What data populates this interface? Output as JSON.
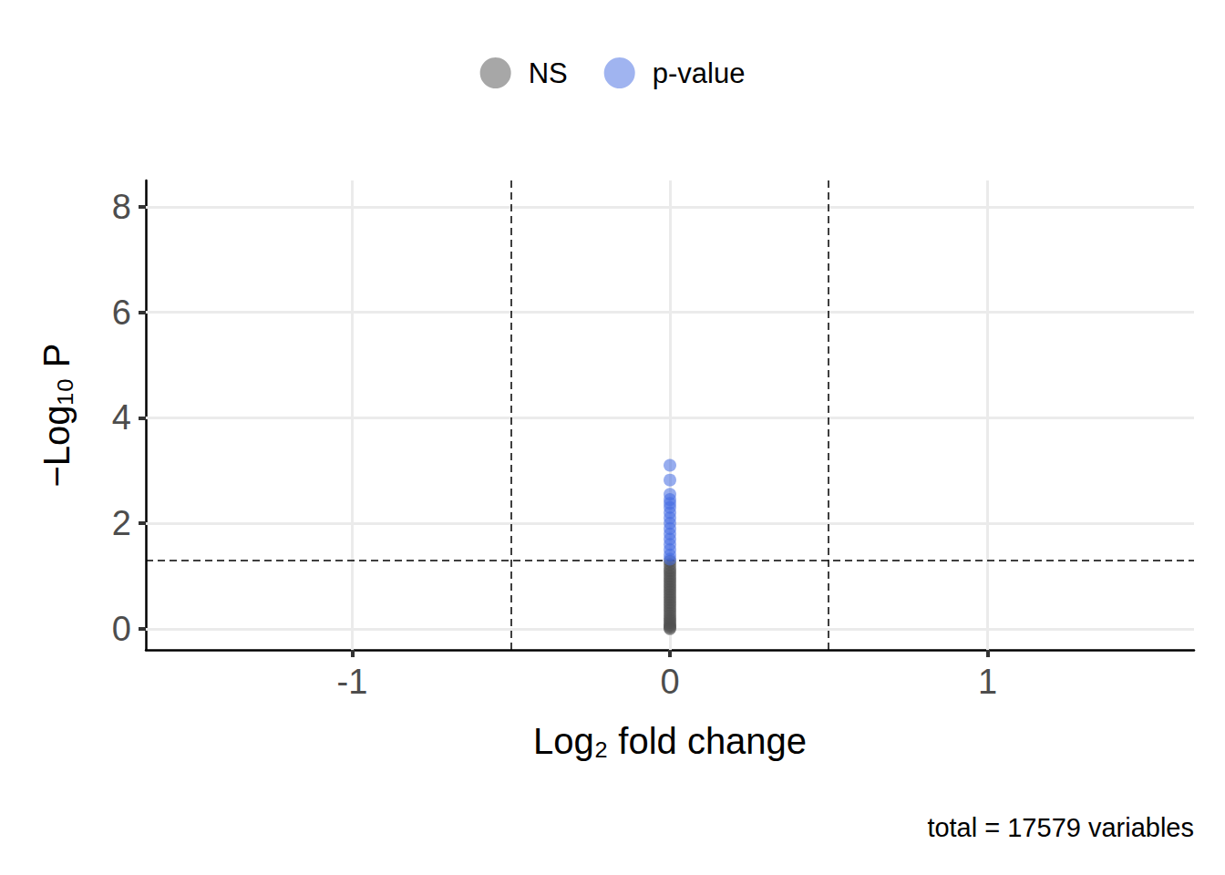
{
  "chart_data": {
    "type": "scatter",
    "x_label": "Log₂ fold change",
    "y_label": "−Log₁₀ P",
    "caption": "total = 17579 variables",
    "xlim": [
      -1.65,
      1.65
    ],
    "xticks": [
      -1,
      0,
      1
    ],
    "ylim": [
      -0.4,
      8.5
    ],
    "yticks": [
      0,
      2,
      4,
      6,
      8
    ],
    "grid": true,
    "legend": "top",
    "marker": "circle",
    "vlines": [
      -0.5,
      0.5
    ],
    "hlines": [
      1.301
    ],
    "series": [
      {
        "name": "NS",
        "color": "#505050",
        "x": [
          0,
          0,
          0,
          0,
          0,
          0,
          0,
          0,
          0,
          0,
          0,
          0,
          0,
          0,
          0,
          0,
          0,
          0,
          0,
          0,
          0,
          0,
          0,
          0,
          0,
          0,
          0,
          0
        ],
        "values": [
          0,
          0.02,
          0.05,
          0.08,
          0.12,
          0.16,
          0.2,
          0.25,
          0.3,
          0.35,
          0.4,
          0.45,
          0.5,
          0.55,
          0.6,
          0.65,
          0.7,
          0.75,
          0.8,
          0.85,
          0.9,
          0.95,
          1.0,
          1.05,
          1.1,
          1.15,
          1.22,
          1.28
        ]
      },
      {
        "name": "p-value",
        "color": "#4169e1",
        "x": [
          0,
          0,
          0,
          0,
          0,
          0,
          0,
          0,
          0,
          0,
          0,
          0,
          0,
          0,
          0,
          0
        ],
        "values": [
          1.32,
          1.4,
          1.5,
          1.6,
          1.7,
          1.8,
          1.9,
          2.0,
          2.1,
          2.2,
          2.3,
          2.38,
          2.45,
          2.55,
          2.82,
          3.1
        ]
      }
    ]
  }
}
